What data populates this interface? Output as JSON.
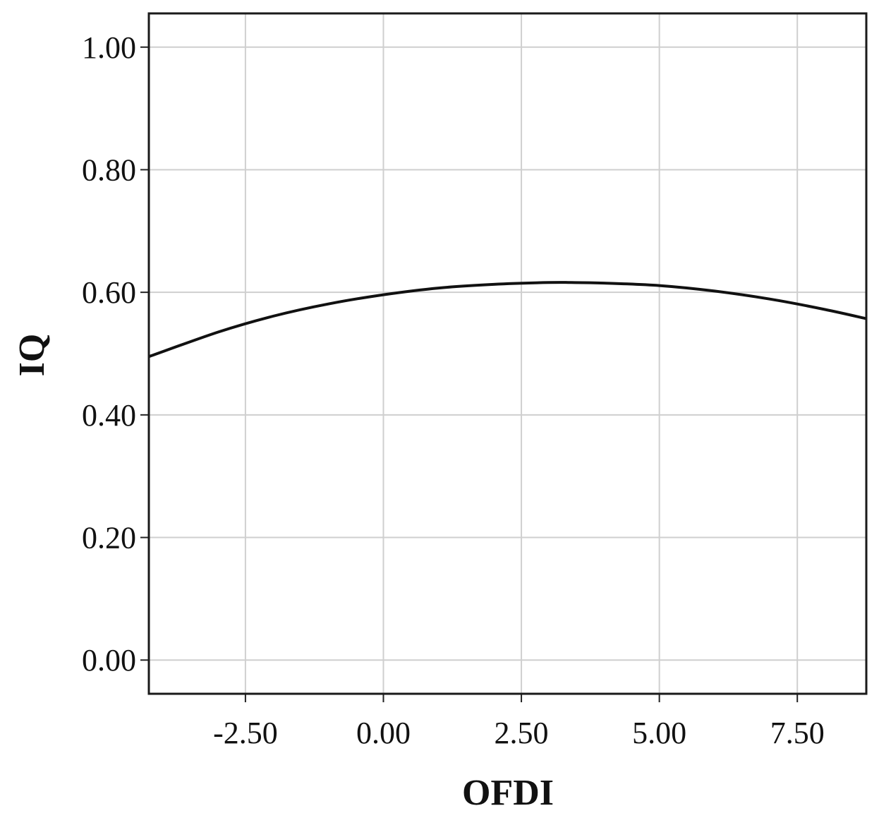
{
  "chart_data": {
    "type": "line",
    "title": "",
    "xlabel": "OFDI",
    "ylabel": "IQ",
    "xlim": [
      -4.25,
      8.75
    ],
    "ylim": [
      -0.055,
      1.055
    ],
    "x_ticks": [
      -2.5,
      0.0,
      2.5,
      5.0,
      7.5
    ],
    "x_tick_labels": [
      "-2.50",
      "0.00",
      "2.50",
      "5.00",
      "7.50"
    ],
    "y_ticks": [
      0.0,
      0.2,
      0.4,
      0.6,
      0.8,
      1.0
    ],
    "y_tick_labels": [
      "0.00",
      "0.20",
      "0.40",
      "0.60",
      "0.80",
      "1.00"
    ],
    "grid": true,
    "legend": "none",
    "series": [
      {
        "x": [
          -4.25,
          -3.0,
          -2.0,
          -1.0,
          0.0,
          1.0,
          2.0,
          3.0,
          3.4,
          4.0,
          5.0,
          6.0,
          7.0,
          8.0,
          8.75
        ],
        "y": [
          0.495,
          0.535,
          0.561,
          0.581,
          0.596,
          0.607,
          0.613,
          0.616,
          0.616,
          0.615,
          0.611,
          0.602,
          0.589,
          0.572,
          0.557
        ],
        "color": "#111111"
      }
    ],
    "colors": {
      "curve": "#111111",
      "grid": "#cfcfcf",
      "frame": "#1a1a1a"
    }
  }
}
